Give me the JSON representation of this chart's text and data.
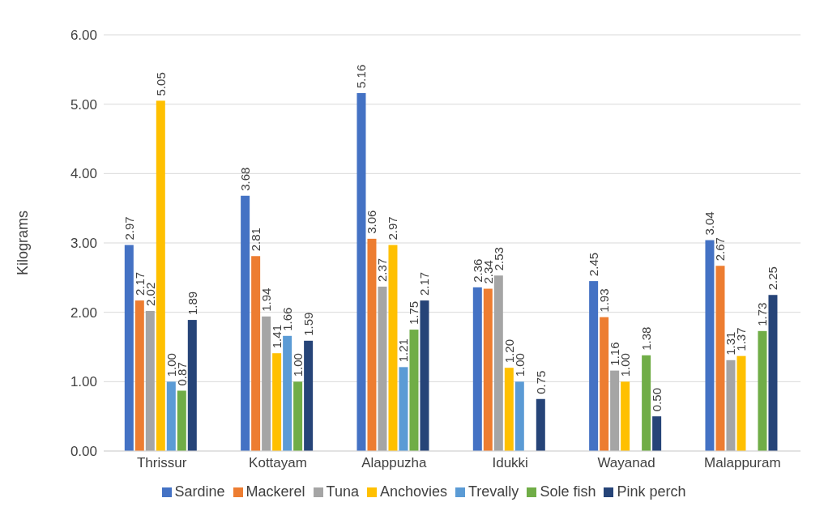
{
  "chart_data": {
    "type": "bar",
    "ylabel": "Kilograms",
    "categories": [
      "Thrissur",
      "Kottayam",
      "Alappuzha",
      "Idukki",
      "Wayanad",
      "Malappuram"
    ],
    "series": [
      {
        "name": "Sardine",
        "color": "#4472c4",
        "values": [
          2.97,
          3.68,
          5.16,
          2.36,
          2.45,
          3.04
        ],
        "value_labels": [
          "2.97",
          "3.68",
          "5.16",
          "2.36",
          "2.45",
          "3.04"
        ]
      },
      {
        "name": "Mackerel",
        "color": "#ed7d31",
        "values": [
          2.17,
          2.81,
          3.06,
          2.34,
          1.93,
          2.67
        ],
        "value_labels": [
          "2.17",
          "2.81",
          "3.06",
          "2.34",
          "1.93",
          "2.67"
        ]
      },
      {
        "name": "Tuna",
        "color": "#a5a5a5",
        "values": [
          2.02,
          1.94,
          2.37,
          2.53,
          1.16,
          1.31
        ],
        "value_labels": [
          "2.02",
          "1.94",
          "2.37",
          "2.53",
          "1.16",
          "1.31"
        ]
      },
      {
        "name": "Anchovies",
        "color": "#ffc000",
        "values": [
          5.05,
          1.41,
          2.97,
          1.2,
          1.0,
          1.37
        ],
        "value_labels": [
          "5.05",
          "1.41",
          "2.97",
          "1.20",
          "1.00",
          "1.37"
        ]
      },
      {
        "name": "Trevally",
        "color": "#5b9bd5",
        "values": [
          1.0,
          1.66,
          1.21,
          1.0,
          null,
          null
        ],
        "value_labels": [
          "1.00",
          "1.66",
          "1.21",
          "1.00",
          null,
          null
        ]
      },
      {
        "name": "Sole fish",
        "color": "#70ad47",
        "values": [
          0.87,
          1.0,
          1.75,
          null,
          1.38,
          1.73
        ],
        "value_labels": [
          "0.87",
          "1.00",
          "1.75",
          null,
          "1.38",
          "1.73"
        ]
      },
      {
        "name": "Pink perch",
        "color": "#264478",
        "values": [
          1.89,
          1.59,
          2.17,
          0.75,
          0.5,
          2.25
        ],
        "value_labels": [
          "1.89",
          "1.59",
          "2.17",
          "0.75",
          "0.50",
          "2.25"
        ]
      }
    ],
    "ylim": [
      0,
      6
    ],
    "yticks": [
      {
        "value": 0,
        "label": "0.00"
      },
      {
        "value": 1,
        "label": "1.00"
      },
      {
        "value": 2,
        "label": "2.00"
      },
      {
        "value": 3,
        "label": "3.00"
      },
      {
        "value": 4,
        "label": "4.00"
      },
      {
        "value": 5,
        "label": "5.00"
      },
      {
        "value": 6,
        "label": "6.00"
      }
    ],
    "grid": "y",
    "legend": "bottom"
  }
}
